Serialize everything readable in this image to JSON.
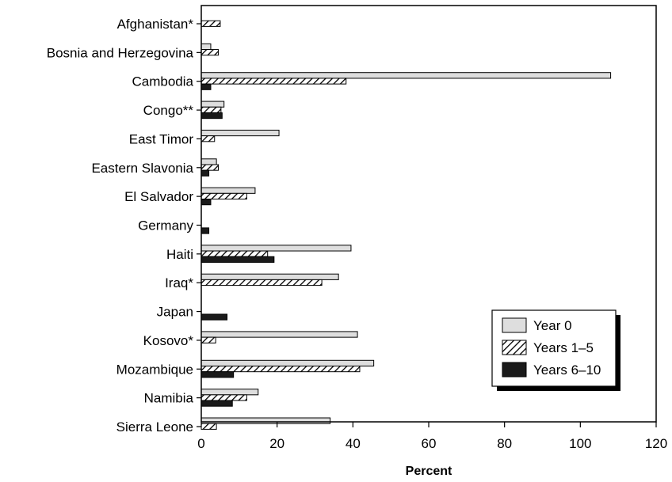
{
  "chart_data": {
    "type": "bar",
    "orientation": "horizontal",
    "categories": [
      "Afghanistan*",
      "Bosnia and Herzegovina",
      "Cambodia",
      "Congo**",
      "East Timor",
      "Eastern Slavonia",
      "El Salvador",
      "Germany",
      "Haiti",
      "Iraq*",
      "Japan",
      "Kosovo*",
      "Mozambique",
      "Namibia",
      "Sierra Leone"
    ],
    "series": [
      {
        "name": "Year 0",
        "pattern": "light-gray",
        "values": [
          null,
          2.5,
          108,
          6,
          20.5,
          4,
          14.2,
          null,
          39.5,
          36.2,
          null,
          41.2,
          45.5,
          15,
          34
        ]
      },
      {
        "name": "Years 1–5",
        "pattern": "hatched",
        "values": [
          5,
          4.5,
          38.2,
          5.2,
          3.5,
          4.5,
          12,
          null,
          17.5,
          31.8,
          null,
          3.8,
          41.8,
          12,
          4
        ]
      },
      {
        "name": "Years 6–10",
        "pattern": "black",
        "values": [
          null,
          null,
          2.5,
          5.5,
          null,
          2,
          2.5,
          2,
          19.2,
          null,
          6.8,
          null,
          8.5,
          8.2,
          null
        ]
      }
    ],
    "xlabel": "Percent",
    "xlim": [
      0,
      120
    ],
    "xticks": [
      0,
      20,
      40,
      60,
      80,
      100,
      120
    ],
    "legend_position": "bottom-right",
    "grid": false,
    "colors": {
      "Year 0": "#dedede",
      "Years 1–5": "hatch",
      "Years 6–10": "#1a1a1a"
    }
  }
}
